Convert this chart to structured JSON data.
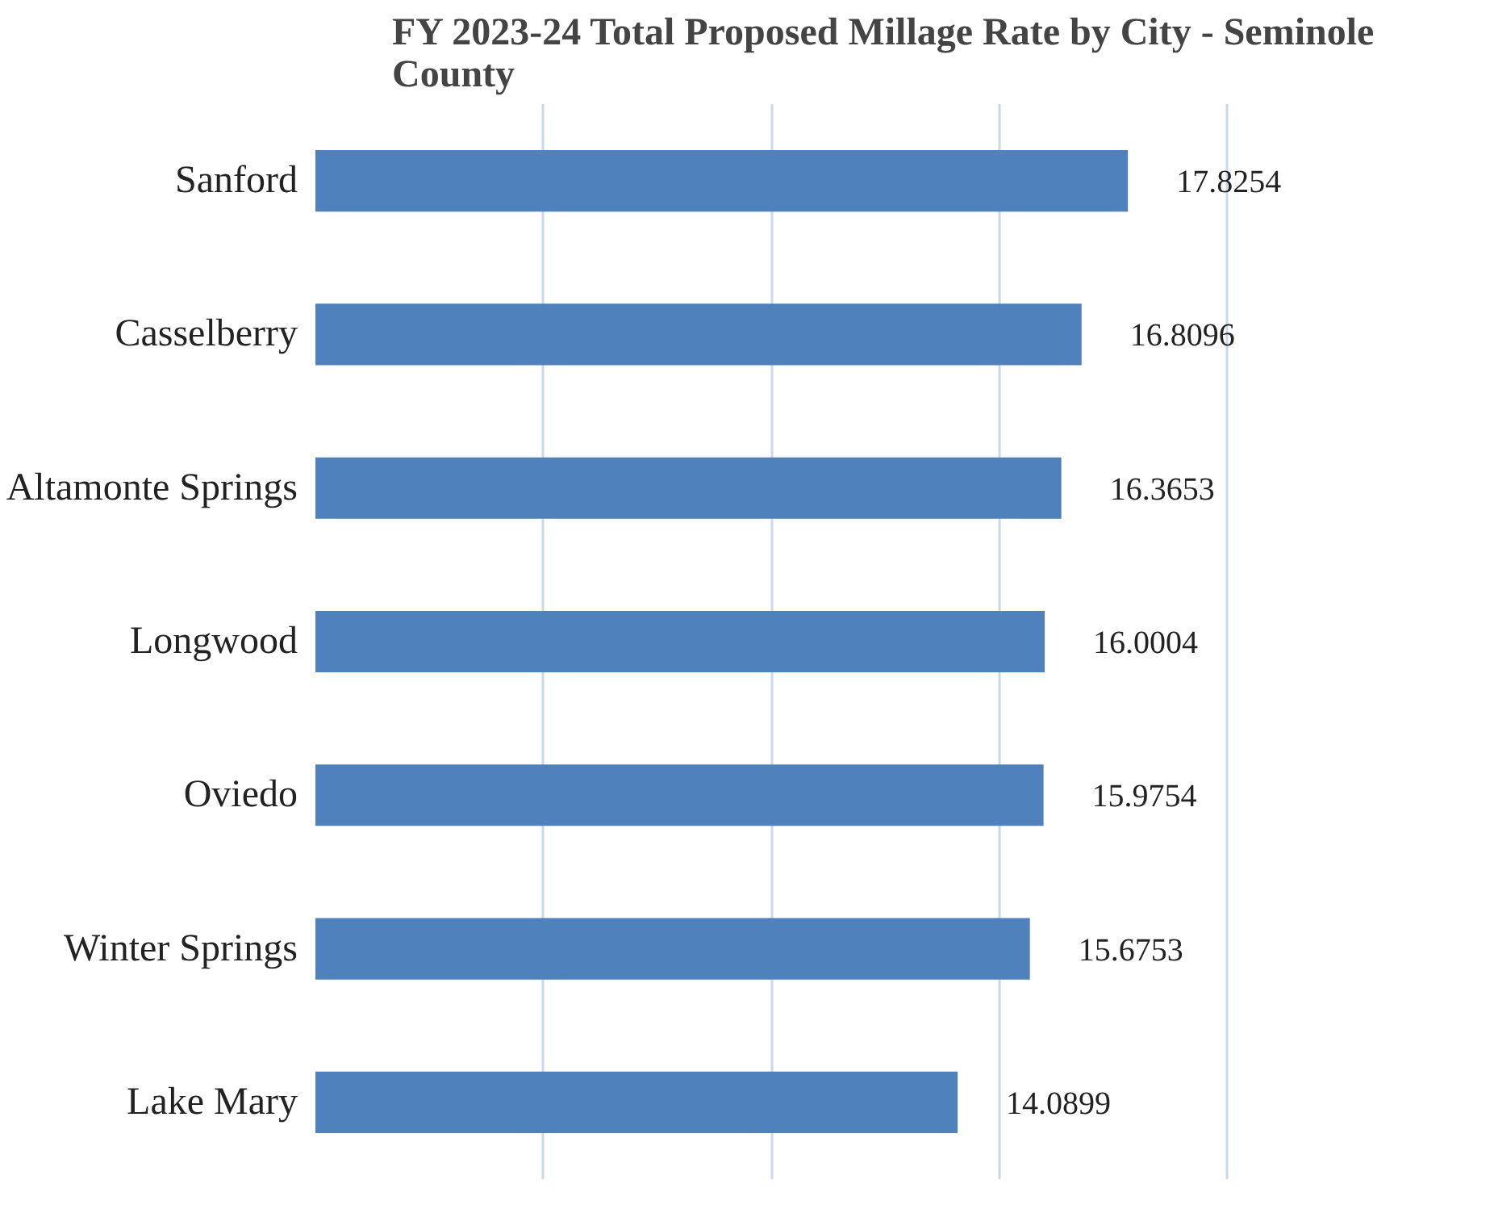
{
  "chart_data": {
    "type": "bar",
    "orientation": "horizontal",
    "title": "FY 2023-24 Total Proposed Millage Rate by City - Seminole County",
    "categories": [
      "Sanford",
      "Casselberry",
      "Altamonte Springs",
      "Longwood",
      "Oviedo",
      "Winter Springs",
      "Lake Mary"
    ],
    "values": [
      17.8254,
      16.8096,
      16.3653,
      16.0004,
      15.9754,
      15.6753,
      14.0899
    ],
    "color": "#4f81bd",
    "data_labels": true,
    "grid": "x",
    "tick_labels": "y"
  }
}
